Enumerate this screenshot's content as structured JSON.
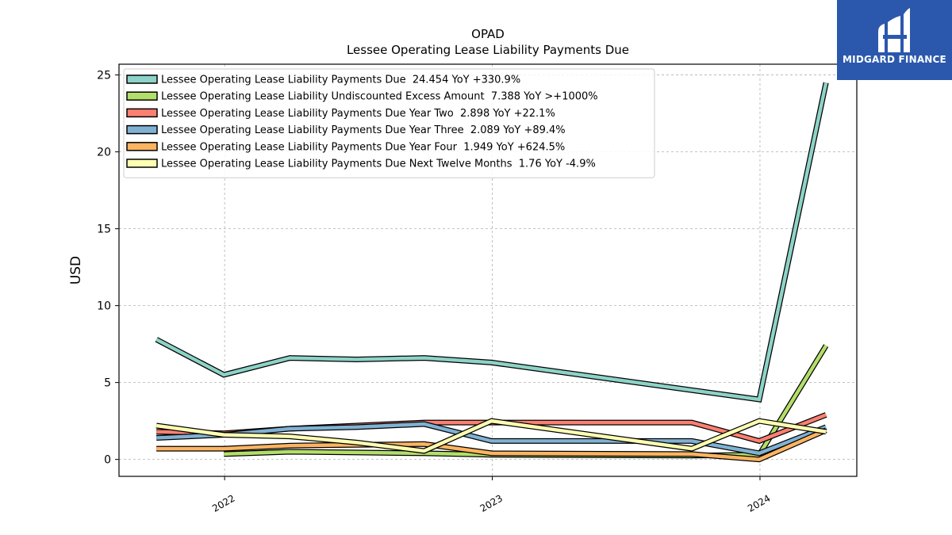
{
  "brand": {
    "name": "MIDGARD FINANCE",
    "background": "#2b58ad"
  },
  "chart_data": {
    "type": "line",
    "title": "OPAD",
    "subtitle": "Lessee Operating Lease Liability Payments Due",
    "xlabel": "",
    "ylabel": "USD",
    "xlim": [
      "2021-08-10",
      "2024-05-12"
    ],
    "ylim": [
      -1.1,
      25.7
    ],
    "x_ticks": [
      "2022",
      "2023",
      "2024"
    ],
    "y_ticks": [
      0,
      5,
      10,
      15,
      20,
      25
    ],
    "grid": true,
    "legend_position": "top-left",
    "series": [
      {
        "name": "Lessee Operating Lease Liability Payments Due  24.454 YoY +330.9%",
        "color": "#8dd3c7",
        "points": [
          [
            "2021-09-30",
            7.8
          ],
          [
            "2021-12-31",
            5.5
          ],
          [
            "2022-03-31",
            6.6
          ],
          [
            "2022-06-30",
            6.5
          ],
          [
            "2022-09-30",
            6.6
          ],
          [
            "2022-12-31",
            6.3
          ],
          [
            "2023-12-31",
            3.9
          ],
          [
            "2024-03-31",
            24.5
          ]
        ]
      },
      {
        "name": "Lessee Operating Lease Liability Undiscounted Excess Amount  7.388 YoY >+1000%",
        "color": "#b3de69",
        "points": [
          [
            "2021-12-31",
            0.35
          ],
          [
            "2022-03-31",
            0.5
          ],
          [
            "2022-06-30",
            0.45
          ],
          [
            "2022-09-30",
            0.4
          ],
          [
            "2022-12-31",
            0.3
          ],
          [
            "2023-09-30",
            0.25
          ],
          [
            "2023-12-31",
            0.3
          ],
          [
            "2024-03-31",
            7.4
          ]
        ]
      },
      {
        "name": "Lessee Operating Lease Liability Payments Due Year Two  2.898 YoY +22.1%",
        "color": "#fb8072",
        "points": [
          [
            "2021-09-30",
            1.8
          ],
          [
            "2021-12-31",
            1.7
          ],
          [
            "2022-03-31",
            2.0
          ],
          [
            "2022-06-30",
            2.2
          ],
          [
            "2022-09-30",
            2.4
          ],
          [
            "2022-12-31",
            2.4
          ],
          [
            "2023-09-30",
            2.4
          ],
          [
            "2023-12-31",
            1.2
          ],
          [
            "2024-03-31",
            2.9
          ]
        ]
      },
      {
        "name": "Lessee Operating Lease Liability Payments Due Year Three  2.089 YoY +89.4%",
        "color": "#80b1d3",
        "points": [
          [
            "2021-09-30",
            1.4
          ],
          [
            "2021-12-31",
            1.6
          ],
          [
            "2022-03-31",
            2.0
          ],
          [
            "2022-06-30",
            2.1
          ],
          [
            "2022-09-30",
            2.3
          ],
          [
            "2022-12-31",
            1.2
          ],
          [
            "2023-09-30",
            1.2
          ],
          [
            "2023-12-31",
            0.4
          ],
          [
            "2024-03-31",
            2.1
          ]
        ]
      },
      {
        "name": "Lessee Operating Lease Liability Payments Due Year Four  1.949 YoY +624.5%",
        "color": "#fdb462",
        "points": [
          [
            "2021-09-30",
            0.7
          ],
          [
            "2021-12-31",
            0.7
          ],
          [
            "2022-03-31",
            0.9
          ],
          [
            "2022-06-30",
            0.95
          ],
          [
            "2022-09-30",
            1.0
          ],
          [
            "2022-12-31",
            0.4
          ],
          [
            "2023-09-30",
            0.35
          ],
          [
            "2023-12-31",
            0.0
          ],
          [
            "2024-03-31",
            1.9
          ]
        ]
      },
      {
        "name": "Lessee Operating Lease Liability Payments Due Next Twelve Months  1.76 YoY -4.9%",
        "color": "#ffffb3",
        "points": [
          [
            "2021-09-30",
            2.2
          ],
          [
            "2021-12-31",
            1.6
          ],
          [
            "2022-03-31",
            1.5
          ],
          [
            "2022-06-30",
            1.1
          ],
          [
            "2022-09-30",
            0.55
          ],
          [
            "2022-12-31",
            2.5
          ],
          [
            "2023-09-30",
            0.7
          ],
          [
            "2023-12-31",
            2.5
          ],
          [
            "2024-03-31",
            1.8
          ]
        ]
      }
    ]
  }
}
